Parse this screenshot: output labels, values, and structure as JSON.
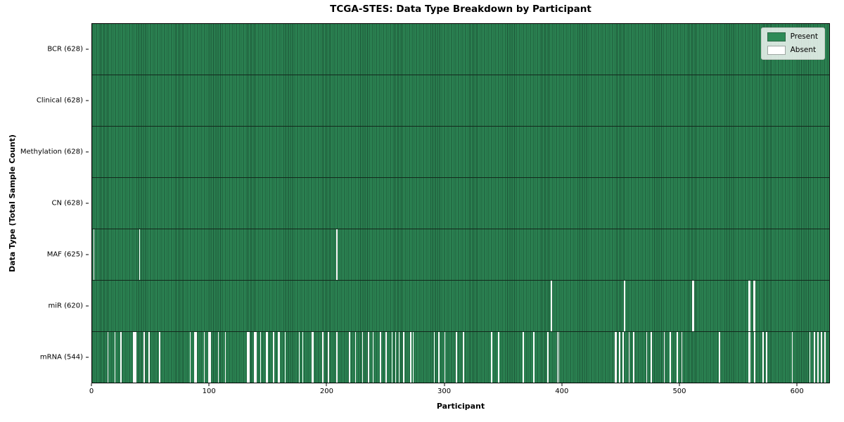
{
  "title": "TCGA-STES: Data Type Breakdown by Participant",
  "xlabel": "Participant",
  "ylabel": "Data Type (Total Sample Count)",
  "legend": [
    {
      "label": "Present",
      "swatch": "present"
    },
    {
      "label": "Absent",
      "swatch": "absent"
    }
  ],
  "colors": {
    "present": "#2e8b57",
    "present_edge": "#1a4f33",
    "absent": "#fcfcfc",
    "row_divider": "#12281c",
    "axis": "#000000",
    "legend_bg": "rgba(255,255,255,0.8)"
  },
  "chart_data": {
    "type": "heatmap",
    "title": "TCGA-STES: Data Type Breakdown by Participant",
    "xlabel": "Participant",
    "ylabel": "Data Type (Total Sample Count)",
    "legend_entries": [
      "Present",
      "Absent"
    ],
    "legend_position": "upper right",
    "total_participants": 628,
    "xlim": [
      0,
      628
    ],
    "x_ticks": [
      0,
      100,
      200,
      300,
      400,
      500,
      600
    ],
    "rows": [
      {
        "id": "bcr",
        "label": "BCR (628)",
        "name": "BCR",
        "present_count": 628,
        "absent": []
      },
      {
        "id": "clinical",
        "label": "Clinical (628)",
        "name": "Clinical",
        "present_count": 628,
        "absent": []
      },
      {
        "id": "methylation",
        "label": "Methylation (628)",
        "name": "Methylation",
        "present_count": 628,
        "absent": []
      },
      {
        "id": "cn",
        "label": "CN (628)",
        "name": "CN",
        "present_count": 628,
        "absent": []
      },
      {
        "id": "maf",
        "label": "MAF (625)",
        "name": "MAF",
        "present_count": 625,
        "absent": [
          1,
          40,
          208
        ]
      },
      {
        "id": "mir",
        "label": "miR (620)",
        "name": "miR",
        "present_count": 620,
        "absent": [
          391,
          453,
          511,
          512,
          559,
          560,
          563,
          564
        ]
      },
      {
        "id": "mrna",
        "label": "mRNA (544)",
        "name": "mRNA",
        "present_count": 544,
        "absent": [
          13,
          19,
          24,
          35,
          36,
          37,
          44,
          48,
          57,
          83,
          87,
          88,
          95,
          99,
          100,
          107,
          113,
          132,
          133,
          138,
          139,
          143,
          148,
          149,
          154,
          158,
          159,
          164,
          176,
          179,
          187,
          188,
          196,
          201,
          208,
          219,
          224,
          230,
          235,
          239,
          245,
          250,
          255,
          258,
          261,
          265,
          271,
          273,
          291,
          295,
          300,
          310,
          316,
          340,
          346,
          367,
          376,
          388,
          396,
          397,
          445,
          446,
          449,
          452,
          457,
          461,
          472,
          476,
          487,
          492,
          498,
          502,
          534,
          559,
          560,
          564,
          571,
          574,
          596,
          611,
          615,
          618,
          621,
          624
        ]
      }
    ]
  }
}
